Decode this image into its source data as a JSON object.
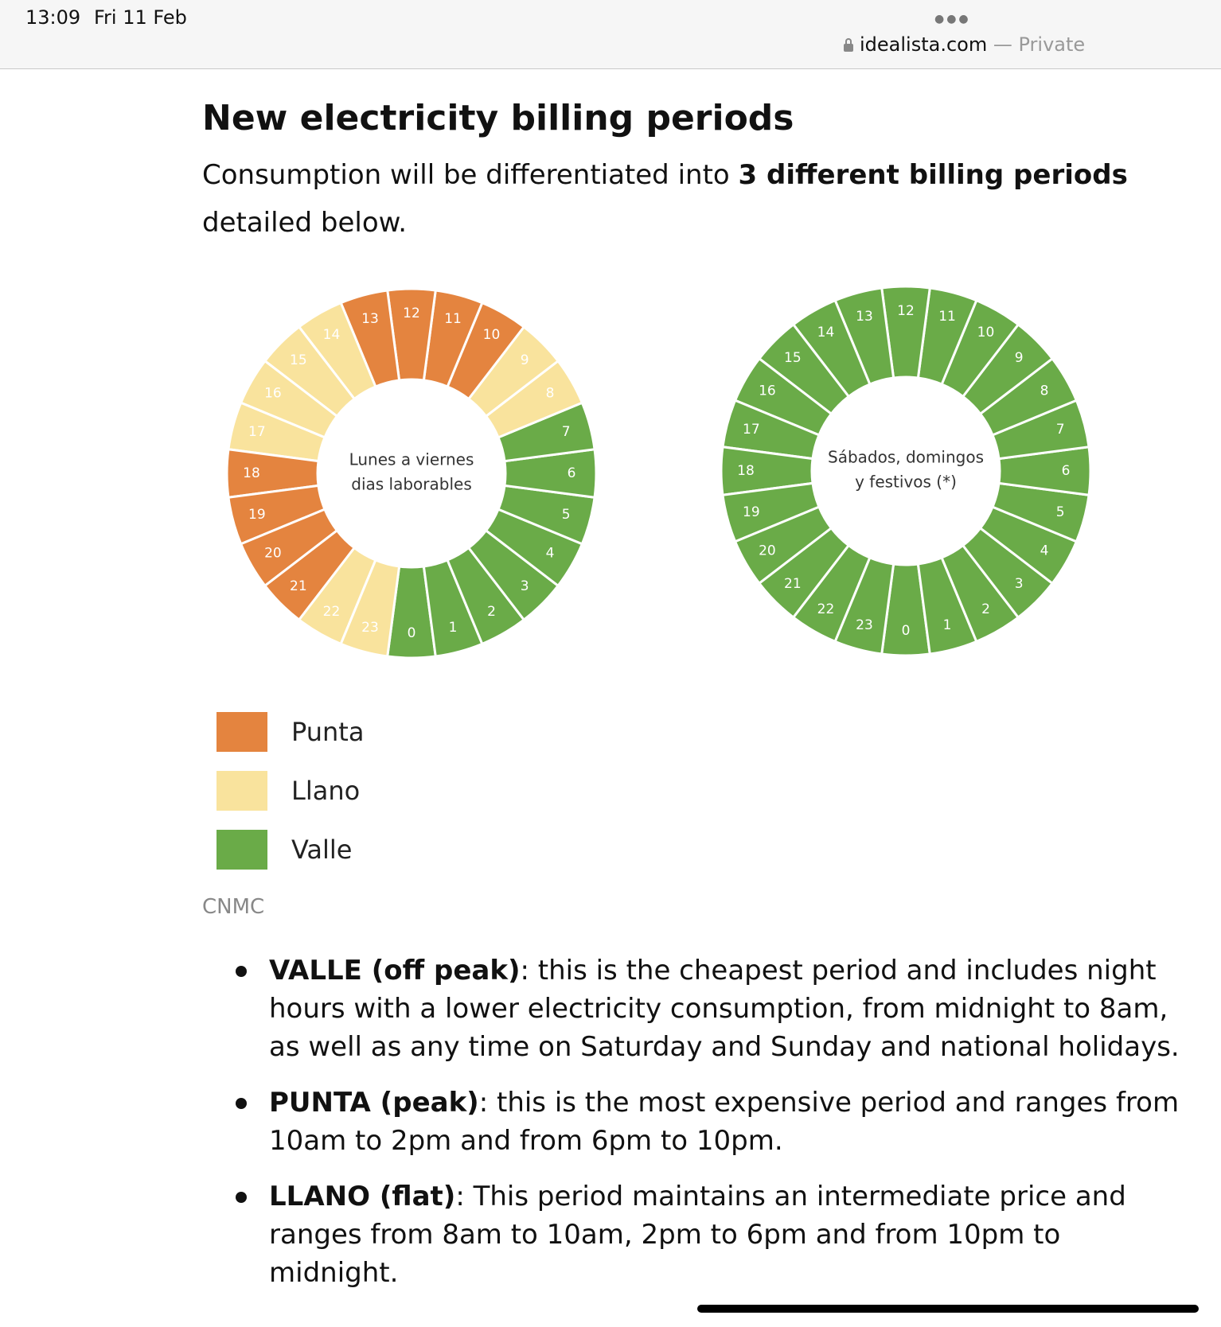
{
  "status_bar": {
    "time": "13:09",
    "date": "Fri 11 Feb",
    "more_icon": "ellipsis-icon",
    "lock_icon": "lock-icon",
    "domain": "idealista.com",
    "separator": "—",
    "mode": "Private"
  },
  "article": {
    "title": "New electricity billing periods",
    "intro_before": "Consumption will be differentiated into ",
    "intro_bold": "3 different billing periods",
    "intro_after": " detailed below."
  },
  "figure": {
    "source": "CNMC",
    "legend": [
      {
        "label": "Punta",
        "color": "#e4843f"
      },
      {
        "label": "Llano",
        "color": "#f9e39d"
      },
      {
        "label": "Valle",
        "color": "#6aab48"
      }
    ]
  },
  "chart_data": [
    {
      "type": "pie",
      "center_label_lines": [
        "Lunes a viernes",
        "dias laborables"
      ],
      "hours": [
        "0",
        "1",
        "2",
        "3",
        "4",
        "5",
        "6",
        "7",
        "8",
        "9",
        "10",
        "11",
        "12",
        "13",
        "14",
        "15",
        "16",
        "17",
        "18",
        "19",
        "20",
        "21",
        "22",
        "23"
      ],
      "periods": [
        "Valle",
        "Valle",
        "Valle",
        "Valle",
        "Valle",
        "Valle",
        "Valle",
        "Valle",
        "Llano",
        "Llano",
        "Punta",
        "Punta",
        "Punta",
        "Punta",
        "Llano",
        "Llano",
        "Llano",
        "Llano",
        "Punta",
        "Punta",
        "Punta",
        "Punta",
        "Llano",
        "Llano"
      ]
    },
    {
      "type": "pie",
      "center_label_lines": [
        "Sábados, domingos",
        "y festivos (*)"
      ],
      "hours": [
        "0",
        "1",
        "2",
        "3",
        "4",
        "5",
        "6",
        "7",
        "8",
        "9",
        "10",
        "11",
        "12",
        "13",
        "14",
        "15",
        "16",
        "17",
        "18",
        "19",
        "20",
        "21",
        "22",
        "23"
      ],
      "periods": [
        "Valle",
        "Valle",
        "Valle",
        "Valle",
        "Valle",
        "Valle",
        "Valle",
        "Valle",
        "Valle",
        "Valle",
        "Valle",
        "Valle",
        "Valle",
        "Valle",
        "Valle",
        "Valle",
        "Valle",
        "Valle",
        "Valle",
        "Valle",
        "Valle",
        "Valle",
        "Valle",
        "Valle"
      ]
    }
  ],
  "bullets": [
    {
      "bold": "VALLE (off peak)",
      "text": ": this is the cheapest period and includes night hours with a lower electricity consumption, from midnight to 8am, as well as any time on Saturday and Sunday and national holidays."
    },
    {
      "bold": "PUNTA (peak)",
      "text": ": this is the most expensive period and ranges from 10am to 2pm and from 6pm to 10pm."
    },
    {
      "bold": "LLANO (flat)",
      "text": ": This period maintains an intermediate price and ranges from 8am to 10am, 2pm to 6pm and from 10pm to midnight."
    }
  ]
}
